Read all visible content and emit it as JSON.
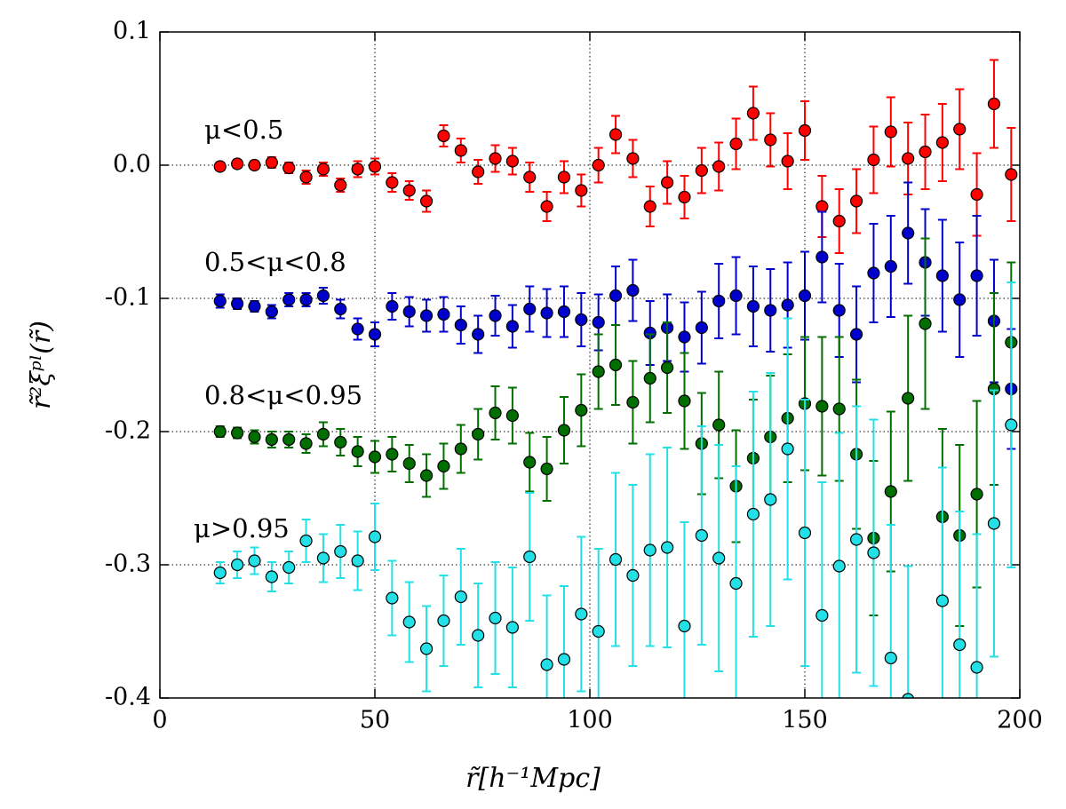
{
  "chart_data": {
    "type": "scatter",
    "x_label": "r̃[h⁻¹Mpc]",
    "y_label": "r̃²ξᵖˡ(r̃)",
    "x": [
      14,
      18,
      22,
      26,
      30,
      34,
      38,
      42,
      46,
      50,
      54,
      58,
      62,
      66,
      70,
      74,
      78,
      82,
      86,
      90,
      94,
      98,
      102,
      106,
      110,
      114,
      118,
      122,
      126,
      130,
      134,
      138,
      142,
      146,
      150,
      154,
      158,
      162,
      166,
      170,
      174,
      178,
      182,
      186,
      190,
      194,
      198
    ],
    "series": [
      {
        "name": "μ<0.5",
        "color": "#ff0000",
        "values": [
          -0.001,
          0.001,
          0.0,
          0.002,
          -0.002,
          -0.009,
          -0.003,
          -0.015,
          -0.003,
          -0.001,
          -0.013,
          -0.019,
          -0.027,
          0.022,
          0.011,
          -0.005,
          0.005,
          0.003,
          -0.009,
          -0.031,
          -0.009,
          -0.019,
          0.0,
          0.023,
          0.005,
          -0.031,
          -0.013,
          -0.024,
          -0.004,
          -0.001,
          0.016,
          0.039,
          0.019,
          0.003,
          0.026,
          -0.031,
          -0.042,
          -0.027,
          0.004,
          0.025,
          0.005,
          0.01,
          0.017,
          0.027,
          -0.022,
          0.046,
          -0.007
        ],
        "errors": [
          0.003,
          0.003,
          0.003,
          0.004,
          0.004,
          0.005,
          0.005,
          0.005,
          0.006,
          0.006,
          0.007,
          0.007,
          0.008,
          0.008,
          0.009,
          0.009,
          0.01,
          0.01,
          0.011,
          0.011,
          0.012,
          0.012,
          0.013,
          0.014,
          0.014,
          0.015,
          0.016,
          0.016,
          0.017,
          0.018,
          0.019,
          0.02,
          0.02,
          0.021,
          0.022,
          0.023,
          0.024,
          0.024,
          0.025,
          0.026,
          0.027,
          0.028,
          0.029,
          0.03,
          0.031,
          0.033,
          0.035
        ]
      },
      {
        "name": "0.5<μ<0.8",
        "color": "#0000cc",
        "values": [
          -0.102,
          -0.104,
          -0.106,
          -0.11,
          -0.101,
          -0.101,
          -0.098,
          -0.108,
          -0.123,
          -0.127,
          -0.106,
          -0.11,
          -0.113,
          -0.112,
          -0.12,
          -0.127,
          -0.113,
          -0.121,
          -0.108,
          -0.111,
          -0.11,
          -0.116,
          -0.118,
          -0.098,
          -0.094,
          -0.126,
          -0.122,
          -0.129,
          -0.122,
          -0.102,
          -0.098,
          -0.106,
          -0.109,
          -0.105,
          -0.098,
          -0.069,
          -0.109,
          -0.127,
          -0.081,
          -0.076,
          -0.051,
          -0.073,
          -0.083,
          -0.101,
          -0.083,
          -0.117,
          -0.168
        ],
        "errors": [
          0.005,
          0.004,
          0.004,
          0.005,
          0.005,
          0.005,
          0.006,
          0.007,
          0.008,
          0.009,
          0.01,
          0.011,
          0.012,
          0.013,
          0.014,
          0.014,
          0.015,
          0.016,
          0.017,
          0.018,
          0.019,
          0.02,
          0.021,
          0.022,
          0.023,
          0.024,
          0.025,
          0.026,
          0.027,
          0.028,
          0.029,
          0.03,
          0.031,
          0.032,
          0.033,
          0.034,
          0.035,
          0.036,
          0.037,
          0.038,
          0.038,
          0.04,
          0.042,
          0.043,
          0.045,
          0.046,
          0.045
        ]
      },
      {
        "name": "0.8<μ<0.95",
        "color": "#006f00",
        "values": [
          -0.2,
          -0.201,
          -0.204,
          -0.206,
          -0.206,
          -0.209,
          -0.202,
          -0.208,
          -0.215,
          -0.219,
          -0.217,
          -0.224,
          -0.233,
          -0.226,
          -0.213,
          -0.202,
          -0.186,
          -0.188,
          -0.223,
          -0.228,
          -0.199,
          -0.184,
          -0.155,
          -0.15,
          -0.178,
          -0.16,
          -0.152,
          -0.177,
          -0.209,
          -0.195,
          -0.241,
          -0.22,
          -0.204,
          -0.19,
          -0.179,
          -0.181,
          -0.183,
          -0.217,
          -0.28,
          -0.245,
          -0.175,
          -0.119,
          -0.264,
          -0.278,
          -0.247,
          -0.168,
          -0.133
        ],
        "errors": [
          0.004,
          0.004,
          0.005,
          0.006,
          0.006,
          0.007,
          0.009,
          0.01,
          0.011,
          0.012,
          0.013,
          0.014,
          0.016,
          0.017,
          0.018,
          0.019,
          0.02,
          0.021,
          0.022,
          0.024,
          0.025,
          0.027,
          0.028,
          0.03,
          0.031,
          0.033,
          0.034,
          0.036,
          0.038,
          0.04,
          0.042,
          0.044,
          0.046,
          0.048,
          0.05,
          0.052,
          0.054,
          0.056,
          0.058,
          0.06,
          0.062,
          0.064,
          0.066,
          0.068,
          0.07,
          0.072,
          0.06
        ]
      },
      {
        "name": "μ>0.95",
        "color": "#22e0e6",
        "values": [
          -0.306,
          -0.3,
          -0.297,
          -0.309,
          -0.302,
          -0.282,
          -0.295,
          -0.29,
          -0.297,
          -0.279,
          -0.325,
          -0.343,
          -0.363,
          -0.342,
          -0.324,
          -0.353,
          -0.34,
          -0.347,
          -0.294,
          -0.375,
          -0.371,
          -0.337,
          -0.35,
          -0.296,
          -0.308,
          -0.289,
          -0.287,
          -0.346,
          -0.278,
          -0.295,
          -0.314,
          -0.262,
          -0.251,
          -0.213,
          -0.276,
          -0.338,
          -0.301,
          -0.281,
          -0.291,
          -0.37,
          -0.401,
          null,
          -0.327,
          -0.36,
          -0.377,
          -0.269,
          -0.195
        ],
        "errors": [
          0.008,
          0.01,
          0.01,
          0.011,
          0.012,
          0.016,
          0.018,
          0.02,
          0.022,
          0.025,
          0.028,
          0.03,
          0.032,
          0.034,
          0.036,
          0.039,
          0.042,
          0.045,
          0.048,
          0.052,
          0.055,
          0.058,
          0.062,
          0.065,
          0.068,
          0.072,
          0.075,
          0.078,
          0.082,
          0.085,
          0.088,
          0.092,
          0.095,
          0.098,
          0.1,
          0.1,
          0.1,
          0.1,
          0.1,
          0.1,
          0.1,
          null,
          0.1,
          0.1,
          0.1,
          0.1,
          0.107
        ]
      }
    ],
    "xlim": [
      0,
      200
    ],
    "xticks": [
      0,
      50,
      100,
      150,
      200
    ],
    "ylim": [
      -0.4,
      0.1
    ],
    "yticks": [
      0.1,
      {
        "value": 0,
        "label": "0.0"
      },
      -0.1,
      -0.2,
      -0.3,
      -0.4
    ],
    "grid": true
  }
}
